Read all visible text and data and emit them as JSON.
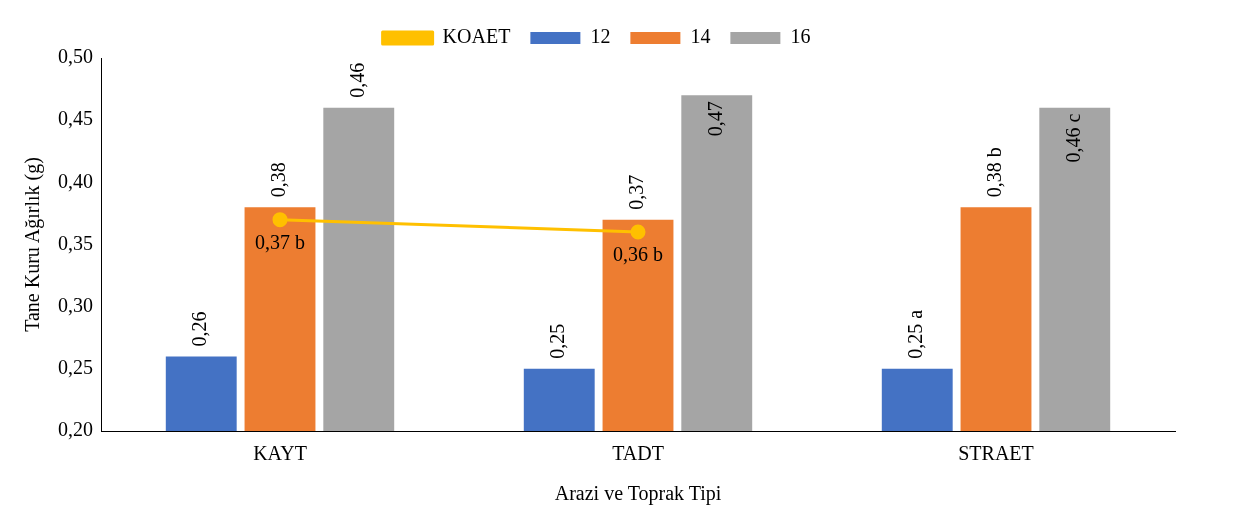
{
  "chart_data": {
    "type": "bar",
    "xlabel": "Arazi ve Toprak Tipi",
    "ylabel": "Tane Kuru Ağırlık (g)",
    "categories": [
      "KAYT",
      "TADT",
      "STRAET"
    ],
    "series": [
      {
        "name": "12",
        "color": "#4472c4",
        "values": [
          0.26,
          0.25,
          0.25
        ],
        "value_labels": [
          "0,26",
          "0,25",
          "0,25 a"
        ]
      },
      {
        "name": "14",
        "color": "#ed7d31",
        "values": [
          0.38,
          0.37,
          0.38
        ],
        "value_labels": [
          "0,38",
          "0,37",
          "0,38 b"
        ]
      },
      {
        "name": "16",
        "color": "#a5a5a5",
        "values": [
          0.46,
          0.47,
          0.46
        ],
        "value_labels": [
          "0,46",
          "0,47",
          "0,46 c"
        ]
      },
      {
        "name": "KOAET",
        "type": "line",
        "color": "#ffc000",
        "marker": "circle",
        "values": [
          0.37,
          0.36,
          null
        ],
        "value_labels": [
          "0,37 b",
          "0,36 b",
          null
        ]
      }
    ],
    "ylim": [
      0.2,
      0.5
    ],
    "yticks": [
      {
        "value": 0.2,
        "label": "0,20"
      },
      {
        "value": 0.25,
        "label": "0,25"
      },
      {
        "value": 0.3,
        "label": "0,30"
      },
      {
        "value": 0.35,
        "label": "0,35"
      },
      {
        "value": 0.4,
        "label": "0,40"
      },
      {
        "value": 0.45,
        "label": "0,45"
      },
      {
        "value": 0.5,
        "label": "0,50"
      }
    ],
    "legend": "top"
  }
}
